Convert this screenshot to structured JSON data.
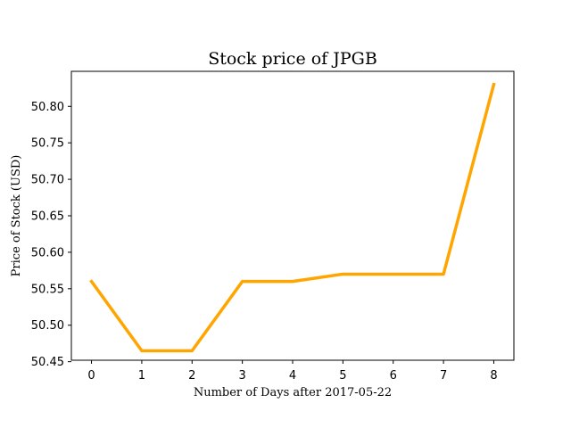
{
  "chart_data": {
    "type": "line",
    "title": "Stock price of JPGB",
    "xlabel": "Number of Days after 2017-05-22",
    "ylabel": "Price of Stock (USD)",
    "x": [
      0,
      1,
      2,
      3,
      4,
      5,
      6,
      7,
      8
    ],
    "series": [
      {
        "values": [
          50.56,
          50.465,
          50.465,
          50.56,
          50.56,
          50.57,
          50.57,
          50.57,
          50.83
        ],
        "color": "#ffa500"
      }
    ],
    "xlim": [
      -0.4,
      8.4
    ],
    "ylim": [
      50.452,
      50.848
    ],
    "xticks": [
      "0",
      "1",
      "2",
      "3",
      "4",
      "5",
      "6",
      "7",
      "8"
    ],
    "yticks": [
      "50.45",
      "50.50",
      "50.55",
      "50.60",
      "50.65",
      "50.70",
      "50.75",
      "50.80"
    ],
    "grid": false,
    "legend": "none"
  }
}
